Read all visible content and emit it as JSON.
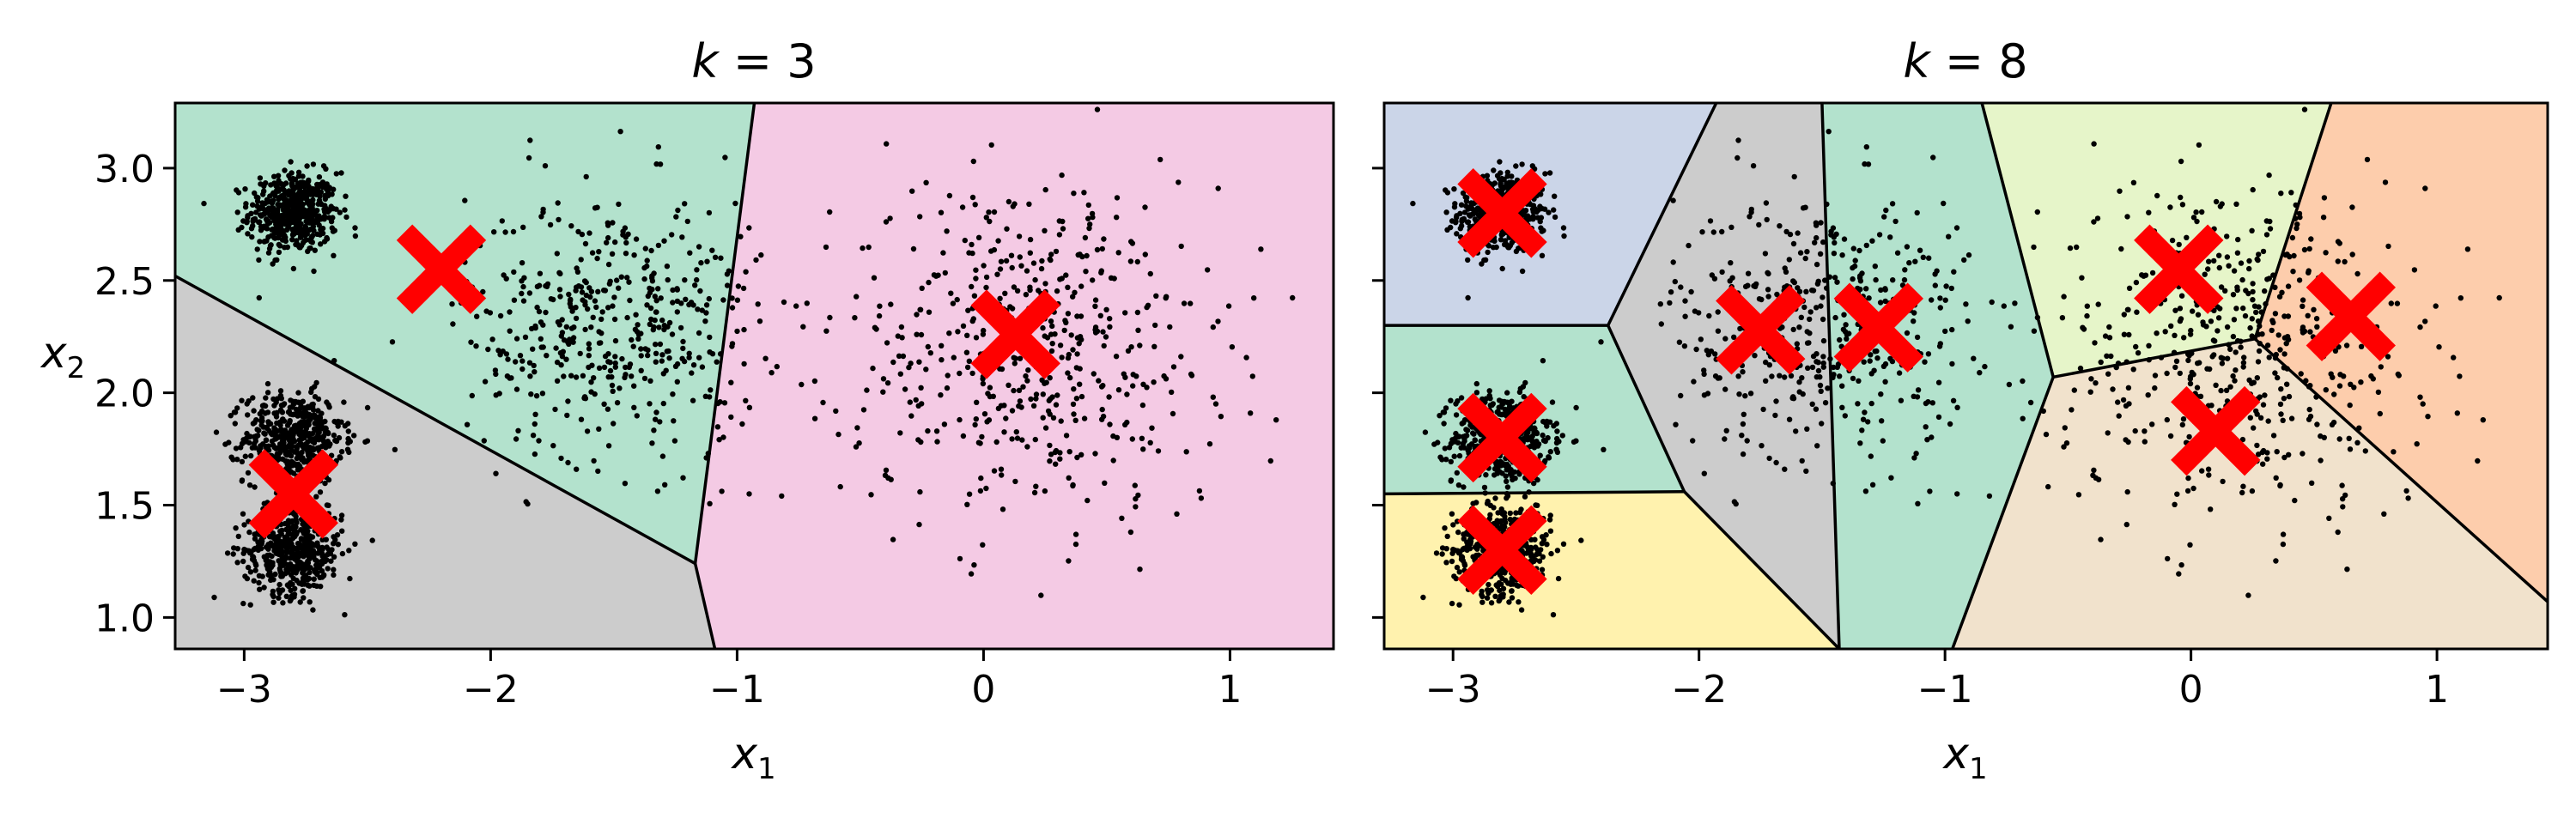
{
  "figure": {
    "shared_ylabel": "x",
    "shared_ylabel_sub": "2"
  },
  "colors": {
    "centroid": "#ff0000",
    "points": "#000000",
    "boundary": "#000000",
    "regions": [
      "#b3e2cd",
      "#f4cae4",
      "#cccccc",
      "#cbd5e8",
      "#b3e2cd",
      "#fff2ae",
      "#e6f5c9",
      "#fdcdac",
      "#f1e2cc"
    ]
  },
  "chart_data": [
    {
      "type": "scatter",
      "title_prefix": "k",
      "title_suffix": " = 3",
      "xlabel": "x",
      "xlabel_sub": "1",
      "ylabel": "x₂",
      "xlim": [
        -3.28,
        1.42
      ],
      "ylim": [
        0.86,
        3.29
      ],
      "xticks": [
        -3,
        -2,
        -1,
        0,
        1
      ],
      "xtick_labels": [
        "−3",
        "−2",
        "−1",
        "0",
        "1"
      ],
      "yticks": [
        1.0,
        1.5,
        2.0,
        2.5,
        3.0
      ],
      "ytick_labels": [
        "1.0",
        "1.5",
        "2.0",
        "2.5",
        "3.0"
      ],
      "centroids": [
        {
          "x": -2.2,
          "y": 2.55
        },
        {
          "x": 0.13,
          "y": 2.26
        },
        {
          "x": -2.8,
          "y": 1.55
        }
      ],
      "regions": [
        {
          "color": "#b3e2cd",
          "polygon": [
            [
              -3.28,
              3.29
            ],
            [
              -0.93,
              3.29
            ],
            [
              -1.17,
              1.24
            ],
            [
              -3.28,
              2.52
            ]
          ]
        },
        {
          "color": "#f4cae4",
          "polygon": [
            [
              -0.93,
              3.29
            ],
            [
              1.42,
              3.29
            ],
            [
              1.42,
              0.86
            ],
            [
              -1.09,
              0.86
            ],
            [
              -1.17,
              1.24
            ]
          ]
        },
        {
          "color": "#cccccc",
          "polygon": [
            [
              -3.28,
              2.52
            ],
            [
              -1.17,
              1.24
            ],
            [
              -1.09,
              0.86
            ],
            [
              -3.28,
              0.86
            ]
          ]
        }
      ],
      "boundaries": [
        [
          [
            -3.28,
            2.52
          ],
          [
            -1.17,
            1.24
          ]
        ],
        [
          [
            -0.93,
            3.29
          ],
          [
            -1.17,
            1.24
          ]
        ],
        [
          [
            -1.17,
            1.24
          ],
          [
            -1.09,
            0.86
          ]
        ]
      ],
      "clusters": [
        {
          "cx": -2.8,
          "cy": 2.8,
          "sx": 0.09,
          "sy": 0.09,
          "n": 520
        },
        {
          "cx": -2.8,
          "cy": 1.8,
          "sx": 0.1,
          "sy": 0.1,
          "n": 480
        },
        {
          "cx": -2.8,
          "cy": 1.3,
          "sx": 0.1,
          "sy": 0.1,
          "n": 480
        },
        {
          "cx": -1.5,
          "cy": 2.3,
          "sx": 0.3,
          "sy": 0.3,
          "n": 470
        },
        {
          "cx": 0.2,
          "cy": 2.2,
          "sx": 0.38,
          "sy": 0.38,
          "n": 520
        }
      ]
    },
    {
      "type": "scatter",
      "title_prefix": "k",
      "title_suffix": " = 8",
      "xlabel": "x",
      "xlabel_sub": "1",
      "xlim": [
        -3.28,
        1.45
      ],
      "ylim": [
        0.86,
        3.29
      ],
      "xticks": [
        -3,
        -2,
        -1,
        0,
        1
      ],
      "xtick_labels": [
        "−3",
        "−2",
        "−1",
        "0",
        "1"
      ],
      "yticks": [
        1.0,
        1.5,
        2.0,
        2.5,
        3.0
      ],
      "centroids": [
        {
          "x": -2.8,
          "y": 2.8
        },
        {
          "x": -2.8,
          "y": 1.8
        },
        {
          "x": -2.8,
          "y": 1.3
        },
        {
          "x": -1.75,
          "y": 2.28
        },
        {
          "x": -1.27,
          "y": 2.29
        },
        {
          "x": -0.05,
          "y": 2.55
        },
        {
          "x": 0.1,
          "y": 1.83
        },
        {
          "x": 0.65,
          "y": 2.34
        }
      ],
      "regions": [
        {
          "color": "#cbd5e8",
          "polygon": [
            [
              -3.28,
              3.29
            ],
            [
              -1.93,
              3.29
            ],
            [
              -2.37,
              2.3
            ],
            [
              -3.28,
              2.3
            ]
          ]
        },
        {
          "color": "#b3e2cd",
          "polygon": [
            [
              -3.28,
              2.3
            ],
            [
              -2.37,
              2.3
            ],
            [
              -2.06,
              1.56
            ],
            [
              -3.28,
              1.55
            ]
          ]
        },
        {
          "color": "#fff2ae",
          "polygon": [
            [
              -3.28,
              1.55
            ],
            [
              -2.06,
              1.56
            ],
            [
              -1.43,
              0.86
            ],
            [
              -3.28,
              0.86
            ]
          ]
        },
        {
          "color": "#cccccc",
          "polygon": [
            [
              -1.93,
              3.29
            ],
            [
              -1.5,
              3.29
            ],
            [
              -1.43,
              0.86
            ],
            [
              -2.06,
              1.56
            ],
            [
              -2.37,
              2.3
            ]
          ]
        },
        {
          "color": "#b3e2cd",
          "polygon": [
            [
              -1.5,
              3.29
            ],
            [
              -0.85,
              3.29
            ],
            [
              -0.56,
              2.07
            ],
            [
              -0.97,
              0.86
            ],
            [
              -1.43,
              0.86
            ]
          ]
        },
        {
          "color": "#e6f5c9",
          "polygon": [
            [
              -0.85,
              3.29
            ],
            [
              0.57,
              3.29
            ],
            [
              0.26,
              2.24
            ],
            [
              -0.56,
              2.07
            ]
          ]
        },
        {
          "color": "#fdcdac",
          "polygon": [
            [
              0.57,
              3.29
            ],
            [
              1.45,
              3.29
            ],
            [
              1.45,
              1.07
            ],
            [
              0.26,
              2.24
            ]
          ]
        },
        {
          "color": "#f1e2cc",
          "polygon": [
            [
              -0.56,
              2.07
            ],
            [
              0.26,
              2.24
            ],
            [
              1.45,
              1.07
            ],
            [
              1.45,
              0.86
            ],
            [
              -0.97,
              0.86
            ]
          ]
        }
      ],
      "boundaries": [
        [
          [
            -3.28,
            2.3
          ],
          [
            -2.37,
            2.3
          ]
        ],
        [
          [
            -1.93,
            3.29
          ],
          [
            -2.37,
            2.3
          ]
        ],
        [
          [
            -2.37,
            2.3
          ],
          [
            -2.06,
            1.56
          ]
        ],
        [
          [
            -3.28,
            1.55
          ],
          [
            -2.06,
            1.56
          ]
        ],
        [
          [
            -2.06,
            1.56
          ],
          [
            -1.43,
            0.86
          ]
        ],
        [
          [
            -1.5,
            3.29
          ],
          [
            -1.43,
            0.86
          ]
        ],
        [
          [
            -0.85,
            3.29
          ],
          [
            -0.56,
            2.07
          ]
        ],
        [
          [
            -0.56,
            2.07
          ],
          [
            -0.97,
            0.86
          ]
        ],
        [
          [
            -0.56,
            2.07
          ],
          [
            0.26,
            2.24
          ]
        ],
        [
          [
            0.57,
            3.29
          ],
          [
            0.26,
            2.24
          ]
        ],
        [
          [
            0.26,
            2.24
          ],
          [
            1.45,
            1.07
          ]
        ]
      ],
      "clusters": [
        {
          "cx": -2.8,
          "cy": 2.8,
          "sx": 0.09,
          "sy": 0.09,
          "n": 520
        },
        {
          "cx": -2.8,
          "cy": 1.8,
          "sx": 0.1,
          "sy": 0.1,
          "n": 480
        },
        {
          "cx": -2.8,
          "cy": 1.3,
          "sx": 0.1,
          "sy": 0.1,
          "n": 480
        },
        {
          "cx": -1.5,
          "cy": 2.3,
          "sx": 0.3,
          "sy": 0.3,
          "n": 470
        },
        {
          "cx": 0.2,
          "cy": 2.2,
          "sx": 0.38,
          "sy": 0.38,
          "n": 520
        }
      ]
    }
  ]
}
